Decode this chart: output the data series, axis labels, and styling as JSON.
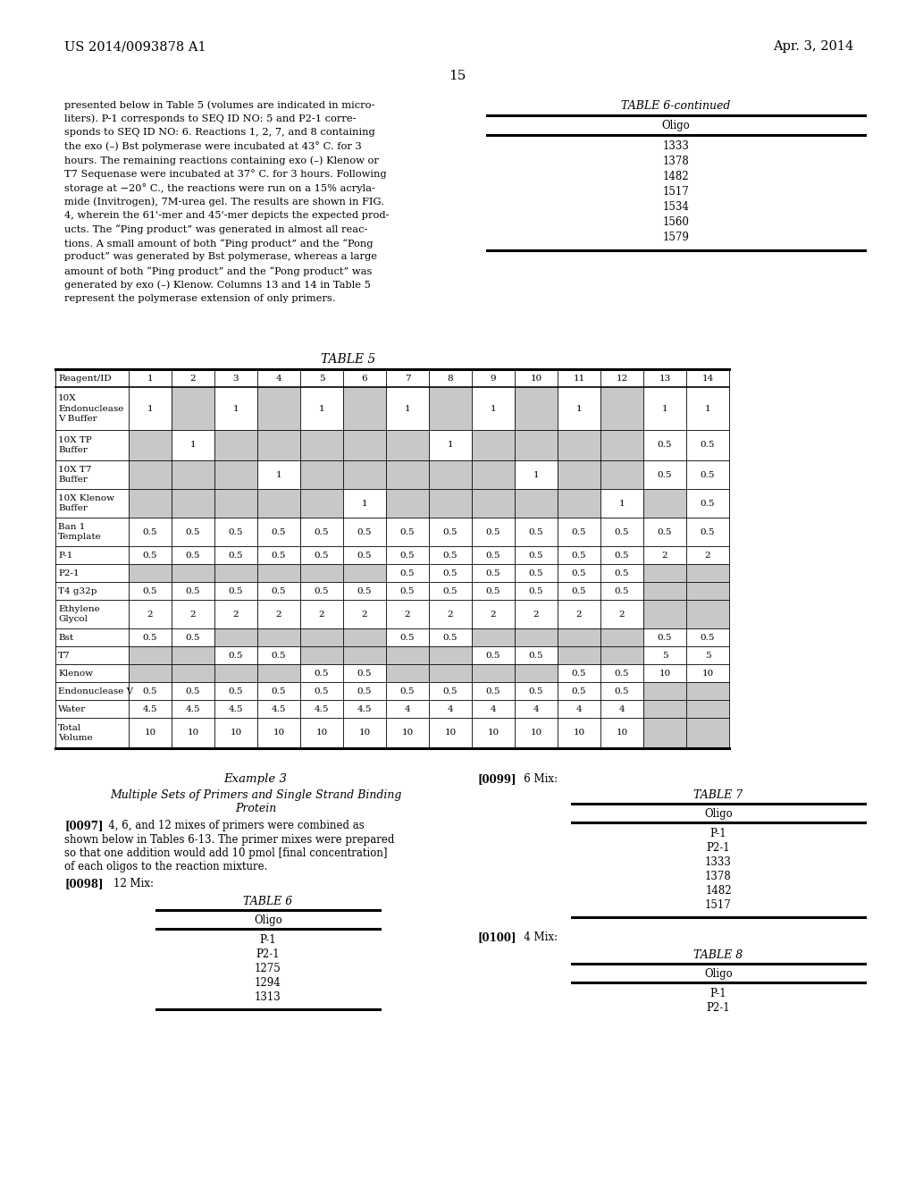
{
  "page_num": "15",
  "header_left": "US 2014/0093878 A1",
  "header_right": "Apr. 3, 2014",
  "bg_color": "#ffffff",
  "left_text_lines": [
    "presented below in Table 5 (volumes are indicated in micro-",
    "liters). P-1 corresponds to SEQ ID NO: 5 and P2-1 corre-",
    "sponds to SEQ ID NO: 6. Reactions 1, 2, 7, and 8 containing",
    "the exo (–) Bst polymerase were incubated at 43° C. for 3",
    "hours. The remaining reactions containing exo (–) Klenow or",
    "T7 Sequenase were incubated at 37° C. for 3 hours. Following",
    "storage at −20° C., the reactions were run on a 15% acryla-",
    "mide (Invitrogen), 7M-urea gel. The results are shown in FIG.",
    "4, wherein the 61'-mer and 45'-mer depicts the expected prod-",
    "ucts. The “Ping product” was generated in almost all reac-",
    "tions. A small amount of both “Ping product” and the “Pong",
    "product” was generated by Bst polymerase, whereas a large",
    "amount of both “Ping product” and the “Pong product” was",
    "generated by exo (–) Klenow. Columns 13 and 14 in Table 5",
    "represent the polymerase extension of only primers."
  ],
  "table6c_title": "TABLE 6-continued",
  "table6c_col": "Oligo",
  "table6c_rows": [
    "1333",
    "1378",
    "1482",
    "1517",
    "1534",
    "1560",
    "1579"
  ],
  "table5_title": "TABLE 5",
  "table5_headers": [
    "Reagent/ID",
    "1",
    "2",
    "3",
    "4",
    "5",
    "6",
    "7",
    "8",
    "9",
    "10",
    "11",
    "12",
    "13",
    "14"
  ],
  "table5_rows": [
    {
      "label": "10X\nEndonuclease\nV Buffer",
      "values": [
        "1",
        "",
        "1",
        "",
        "1",
        "",
        "1",
        "",
        "1",
        "",
        "1",
        "",
        "1",
        "1"
      ],
      "shaded": [
        false,
        true,
        false,
        true,
        false,
        true,
        false,
        true,
        false,
        true,
        false,
        true,
        false,
        false
      ]
    },
    {
      "label": "10X TP\nBuffer",
      "values": [
        "",
        "1",
        "",
        "",
        "",
        "",
        "",
        "1",
        "",
        "",
        "",
        "",
        "0.5",
        "0.5"
      ],
      "shaded": [
        true,
        false,
        true,
        true,
        true,
        true,
        true,
        false,
        true,
        true,
        true,
        true,
        false,
        false
      ]
    },
    {
      "label": "10X T7\nBuffer",
      "values": [
        "",
        "",
        "",
        "1",
        "",
        "",
        "",
        "",
        "",
        "1",
        "",
        "",
        "0.5",
        "0.5"
      ],
      "shaded": [
        true,
        true,
        true,
        false,
        true,
        true,
        true,
        true,
        true,
        false,
        true,
        true,
        false,
        false
      ]
    },
    {
      "label": "10X Klenow\nBuffer",
      "values": [
        "",
        "",
        "",
        "",
        "",
        "1",
        "",
        "",
        "",
        "",
        "",
        "1",
        "",
        "0.5"
      ],
      "shaded": [
        true,
        true,
        true,
        true,
        true,
        false,
        true,
        true,
        true,
        true,
        true,
        false,
        true,
        false
      ]
    },
    {
      "label": "Ban 1\nTemplate",
      "values": [
        "0.5",
        "0.5",
        "0.5",
        "0.5",
        "0.5",
        "0.5",
        "0.5",
        "0.5",
        "0.5",
        "0.5",
        "0.5",
        "0.5",
        "0.5",
        "0.5"
      ],
      "shaded": [
        false,
        false,
        false,
        false,
        false,
        false,
        false,
        false,
        false,
        false,
        false,
        false,
        false,
        false
      ]
    },
    {
      "label": "P-1",
      "values": [
        "0.5",
        "0.5",
        "0.5",
        "0.5",
        "0.5",
        "0.5",
        "0.5",
        "0.5",
        "0.5",
        "0.5",
        "0.5",
        "0.5",
        "2",
        "2"
      ],
      "shaded": [
        false,
        false,
        false,
        false,
        false,
        false,
        false,
        false,
        false,
        false,
        false,
        false,
        false,
        false
      ]
    },
    {
      "label": "P2-1",
      "values": [
        "",
        "",
        "",
        "",
        "",
        "",
        "0.5",
        "0.5",
        "0.5",
        "0.5",
        "0.5",
        "0.5",
        "",
        ""
      ],
      "shaded": [
        true,
        true,
        true,
        true,
        true,
        true,
        false,
        false,
        false,
        false,
        false,
        false,
        true,
        true
      ]
    },
    {
      "label": "T4 g32p",
      "values": [
        "0.5",
        "0.5",
        "0.5",
        "0.5",
        "0.5",
        "0.5",
        "0.5",
        "0.5",
        "0.5",
        "0.5",
        "0.5",
        "0.5",
        "",
        ""
      ],
      "shaded": [
        false,
        false,
        false,
        false,
        false,
        false,
        false,
        false,
        false,
        false,
        false,
        false,
        true,
        true
      ]
    },
    {
      "label": "Ethylene\nGlycol",
      "values": [
        "2",
        "2",
        "2",
        "2",
        "2",
        "2",
        "2",
        "2",
        "2",
        "2",
        "2",
        "2",
        "",
        ""
      ],
      "shaded": [
        false,
        false,
        false,
        false,
        false,
        false,
        false,
        false,
        false,
        false,
        false,
        false,
        true,
        true
      ]
    },
    {
      "label": "Bst",
      "values": [
        "0.5",
        "0.5",
        "",
        "",
        "",
        "",
        "0.5",
        "0.5",
        "",
        "",
        "",
        "",
        "0.5",
        "0.5"
      ],
      "shaded": [
        false,
        false,
        true,
        true,
        true,
        true,
        false,
        false,
        true,
        true,
        true,
        true,
        false,
        false
      ]
    },
    {
      "label": "T7",
      "values": [
        "",
        "",
        "0.5",
        "0.5",
        "",
        "",
        "",
        "",
        "0.5",
        "0.5",
        "",
        "",
        "5",
        "5"
      ],
      "shaded": [
        true,
        true,
        false,
        false,
        true,
        true,
        true,
        true,
        false,
        false,
        true,
        true,
        false,
        false
      ]
    },
    {
      "label": "Klenow",
      "values": [
        "",
        "",
        "",
        "",
        "0.5",
        "0.5",
        "",
        "",
        "",
        "",
        "0.5",
        "0.5",
        "10",
        "10"
      ],
      "shaded": [
        true,
        true,
        true,
        true,
        false,
        false,
        true,
        true,
        true,
        true,
        false,
        false,
        false,
        false
      ]
    },
    {
      "label": "Endonuclease V",
      "values": [
        "0.5",
        "0.5",
        "0.5",
        "0.5",
        "0.5",
        "0.5",
        "0.5",
        "0.5",
        "0.5",
        "0.5",
        "0.5",
        "0.5",
        "",
        ""
      ],
      "shaded": [
        false,
        false,
        false,
        false,
        false,
        false,
        false,
        false,
        false,
        false,
        false,
        false,
        true,
        true
      ]
    },
    {
      "label": "Water",
      "values": [
        "4.5",
        "4.5",
        "4.5",
        "4.5",
        "4.5",
        "4.5",
        "4",
        "4",
        "4",
        "4",
        "4",
        "4",
        "",
        ""
      ],
      "shaded": [
        false,
        false,
        false,
        false,
        false,
        false,
        false,
        false,
        false,
        false,
        false,
        false,
        true,
        true
      ]
    },
    {
      "label": "Total\nVolume",
      "values": [
        "10",
        "10",
        "10",
        "10",
        "10",
        "10",
        "10",
        "10",
        "10",
        "10",
        "10",
        "10",
        "",
        ""
      ],
      "shaded": [
        false,
        false,
        false,
        false,
        false,
        false,
        false,
        false,
        false,
        false,
        false,
        false,
        true,
        true
      ]
    }
  ],
  "example3_title": "Example 3",
  "example3_subtitle1": "Multiple Sets of Primers and Single Strand Binding",
  "example3_subtitle2": "Protein",
  "para0097_bold": "[0097]",
  "para0097_rest": "   4, 6, and 12 mixes of primers were combined as",
  "para0097_lines": [
    "shown below in Tables 6-13. The primer mixes were prepared",
    "so that one addition would add 10 pmol [final concentration]",
    "of each oligos to the reaction mixture."
  ],
  "para0098": "[0098]",
  "para0098_rest": "    12 Mix:",
  "table6_title": "TABLE 6",
  "table6_col": "Oligo",
  "table6_rows": [
    "P-1",
    "P2-1",
    "1275",
    "1294",
    "1313"
  ],
  "para0099": "[0099]",
  "para0099_rest": "   6 Mix:",
  "table7_title": "TABLE 7",
  "table7_col": "Oligo",
  "table7_rows": [
    "P-1",
    "P2-1",
    "1333",
    "1378",
    "1482",
    "1517"
  ],
  "para0100": "[0100]",
  "para0100_rest": "   4 Mix:",
  "table8_title": "TABLE 8",
  "table8_col": "Oligo",
  "table8_rows": [
    "P-1",
    "P2-1"
  ],
  "shaded_color": "#c8c8c8",
  "line_color": "#000000"
}
